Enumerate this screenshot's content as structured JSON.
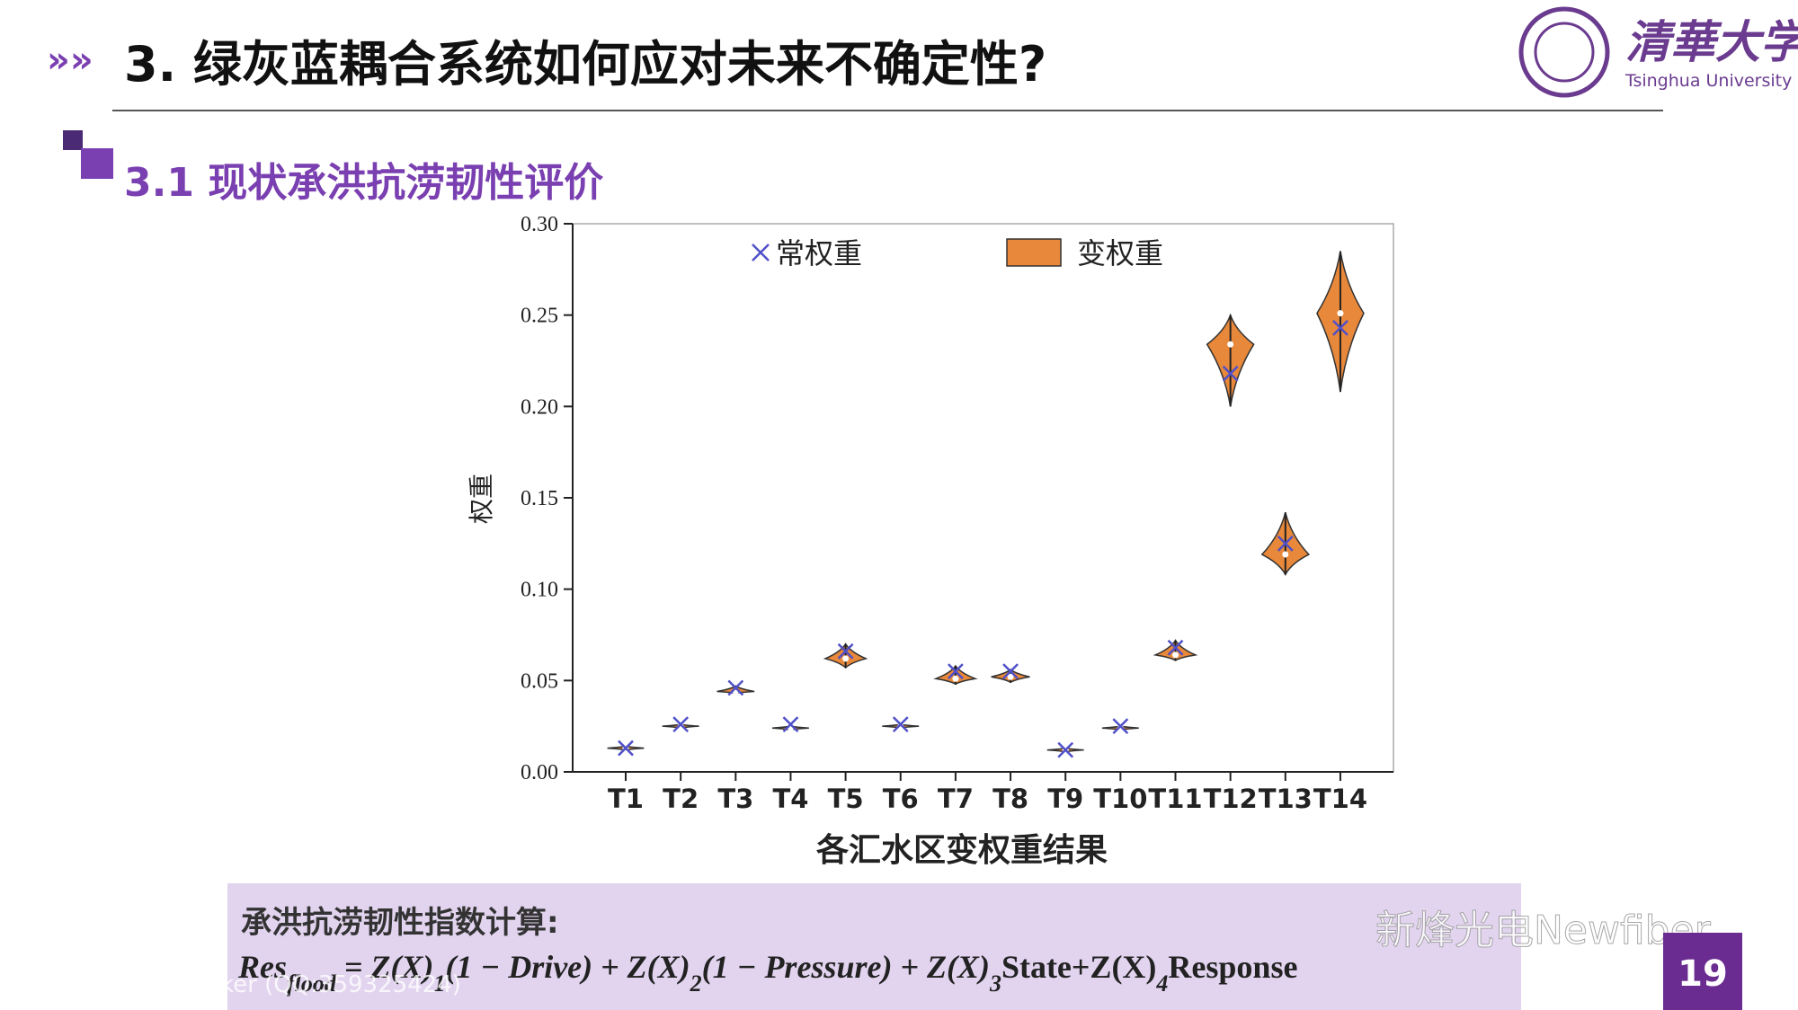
{
  "slide": {
    "title": "3. 绿灰蓝耦合系统如何应对未来不确定性?",
    "subtitle": "3.1 现状承洪抗涝韧性评价",
    "logo_name": "清華大学",
    "logo_english": "Tsinghua University",
    "formula_label": "承洪抗涝韧性指数计算:",
    "formula": [
      "Res",
      "flood",
      " = Z(X)",
      "1",
      "(1 − Drive) + Z(X)",
      "2",
      "(1 − Pressure) + Z(X)",
      "3",
      "State+Z(X)",
      "4",
      "Response"
    ],
    "watermark": "新烽光电Newfiber",
    "footer_note": "ker (QQ:359325424)",
    "page_number": "19"
  },
  "chart_data": {
    "type": "violin",
    "x_label": "各汇水区变权重结果",
    "y_label": "权重",
    "categories": [
      "T1",
      "T2",
      "T3",
      "T4",
      "T5",
      "T6",
      "T7",
      "T8",
      "T9",
      "T10",
      "T11",
      "T12",
      "T13",
      "T14"
    ],
    "series": [
      {
        "name": "常权重",
        "color": "#5050c8",
        "values": [
          0.013,
          0.026,
          0.046,
          0.026,
          0.066,
          0.026,
          0.055,
          0.055,
          0.012,
          0.025,
          0.068,
          0.218,
          0.125,
          0.243
        ]
      },
      {
        "name": "变权重",
        "color": "#e8883a",
        "min": [
          0.012,
          0.024,
          0.043,
          0.023,
          0.057,
          0.024,
          0.048,
          0.049,
          0.011,
          0.023,
          0.061,
          0.2,
          0.108,
          0.208
        ],
        "median": [
          0.013,
          0.025,
          0.044,
          0.024,
          0.062,
          0.025,
          0.051,
          0.052,
          0.012,
          0.024,
          0.064,
          0.234,
          0.119,
          0.251
        ],
        "max": [
          0.014,
          0.026,
          0.047,
          0.025,
          0.07,
          0.026,
          0.058,
          0.056,
          0.013,
          0.025,
          0.072,
          0.25,
          0.142,
          0.285
        ]
      }
    ],
    "ylim": [
      0,
      0.3
    ],
    "yticks": [
      {
        "value": 0,
        "label": "0.00"
      },
      0.05,
      {
        "value": 0.1,
        "label": "0.10"
      },
      0.15,
      {
        "value": 0.2,
        "label": "0.20"
      },
      0.25,
      {
        "value": 0.3,
        "label": "0.30"
      }
    ]
  }
}
